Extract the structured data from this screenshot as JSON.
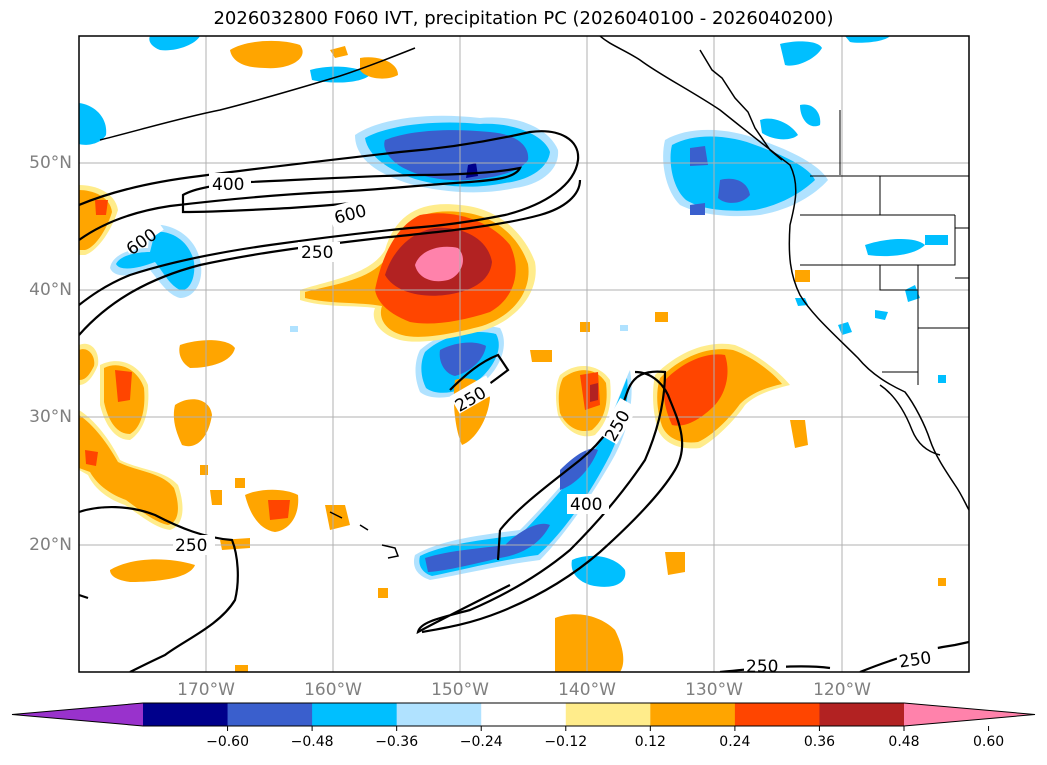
{
  "title": "2026032800 F060 IVT, precipitation PC (2026040100 - 2026040200)",
  "map": {
    "lon_range": [
      -180,
      -110
    ],
    "lat_range": [
      10,
      60
    ],
    "lat_labels": [
      "50°N",
      "40°N",
      "30°N",
      "20°N"
    ],
    "lon_labels": [
      "170°W",
      "160°W",
      "150°W",
      "140°W",
      "130°W",
      "120°W"
    ],
    "grid": true,
    "ivt_contour_labels": [
      "400",
      "600",
      "600",
      "250",
      "250",
      "250",
      "400",
      "250",
      "250",
      "250"
    ]
  },
  "colorbar": {
    "ticks": [
      "−0.60",
      "−0.48",
      "−0.36",
      "−0.24",
      "−0.12",
      "0.12",
      "0.24",
      "0.36",
      "0.48",
      "0.60"
    ],
    "colors": [
      "#9932cc",
      "#00008b",
      "#3a5fcd",
      "#00bfff",
      "#b0e2ff",
      "#ffffff",
      "#ffec8b",
      "#ffa500",
      "#ff4500",
      "#b22222",
      "#ff82ab"
    ],
    "extend": "both"
  }
}
